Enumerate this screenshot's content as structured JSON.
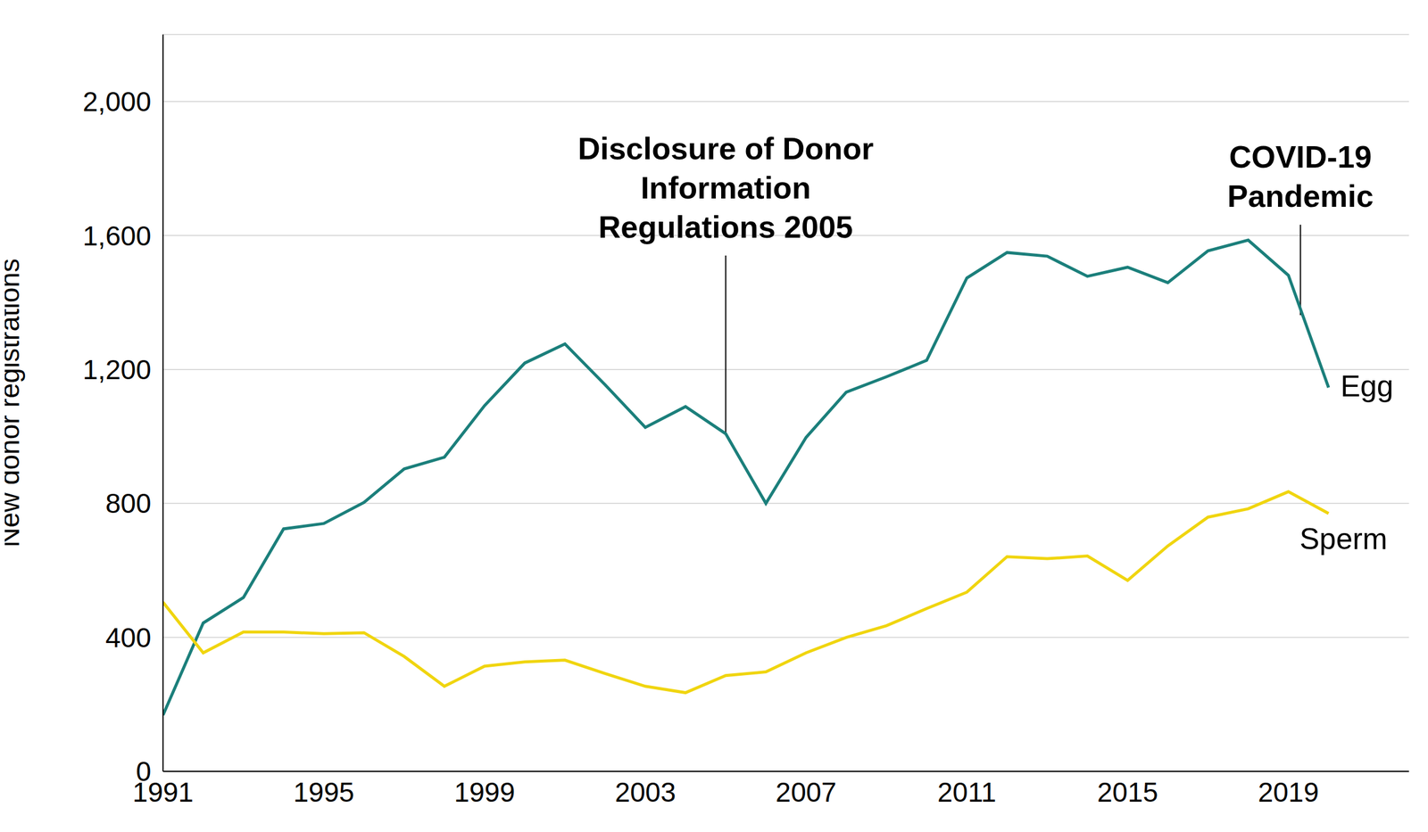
{
  "chart_data": {
    "type": "line",
    "y_label": "New donor registrations",
    "x": [
      1991,
      1992,
      1993,
      1994,
      1995,
      1996,
      1997,
      1998,
      1999,
      2000,
      2001,
      2002,
      2003,
      2004,
      2005,
      2006,
      2007,
      2008,
      2009,
      2010,
      2011,
      2012,
      2013,
      2014,
      2015,
      2016,
      2017,
      2018,
      2019,
      2020
    ],
    "series": [
      {
        "name": "Egg",
        "color": "#1b7f7b",
        "values": [
          168,
          443,
          519,
          724,
          740,
          803,
          903,
          938,
          1092,
          1219,
          1276,
          1154,
          1027,
          1089,
          1008,
          800,
          997,
          1132,
          1178,
          1227,
          1473,
          1549,
          1538,
          1478,
          1505,
          1459,
          1554,
          1586,
          1481,
          1146
        ]
      },
      {
        "name": "Sperm",
        "color": "#f0d50f",
        "values": [
          505,
          354,
          416,
          416,
          411,
          414,
          343,
          254,
          314,
          327,
          332,
          292,
          254,
          235,
          286,
          297,
          354,
          400,
          435,
          486,
          535,
          641,
          635,
          643,
          570,
          673,
          759,
          784,
          835,
          770
        ]
      }
    ],
    "xlim": [
      1991,
      2022
    ],
    "xticks": [
      1991,
      1995,
      1999,
      2003,
      2007,
      2011,
      2015,
      2019
    ],
    "ylim": [
      0,
      2200
    ],
    "yticks": [
      0,
      400,
      800,
      {
        "value": 1200,
        "label": "1,200"
      },
      {
        "value": 1600,
        "label": "1,600"
      },
      {
        "value": 2000,
        "label": "2,000"
      }
    ],
    "grid": true,
    "annotations": [
      {
        "lines": [
          "Disclosure of Donor",
          "Information",
          "Regulations 2005"
        ],
        "x": 2005,
        "y_start": 1010,
        "y_end": 1540
      },
      {
        "lines": [
          "COVID-19",
          "Pandemic"
        ],
        "x": 2019.3,
        "y_start": 1362,
        "y_end": 1632
      }
    ]
  }
}
